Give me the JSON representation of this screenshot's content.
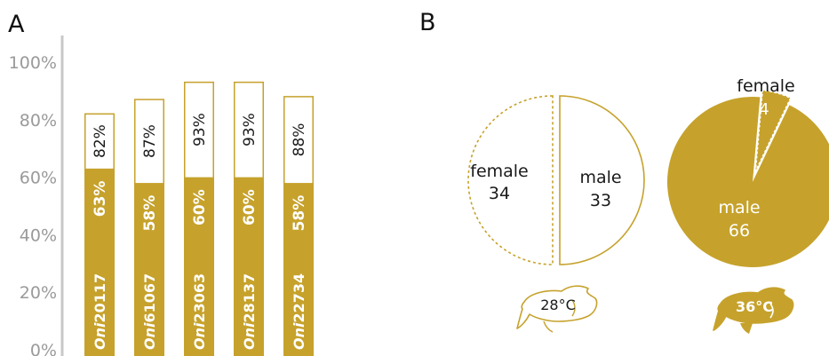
{
  "colors": {
    "gold": "#c6a22c",
    "axis": "#c8c8c8",
    "tick_text": "#9a9a9a",
    "text": "#1a1a1a",
    "white": "#ffffff"
  },
  "panels": {
    "a": "A",
    "b": "B"
  },
  "chart_data": [
    {
      "type": "bar",
      "panel": "A",
      "ylim": [
        0,
        100
      ],
      "yticks": [
        "0%",
        "20%",
        "40%",
        "60%",
        "80%",
        "100%"
      ],
      "categories": [
        {
          "prefix": "Oni",
          "suffix": "20117"
        },
        {
          "prefix": "Oni",
          "suffix": "61067"
        },
        {
          "prefix": "Oni",
          "suffix": "23063"
        },
        {
          "prefix": "Oni",
          "suffix": "28137"
        },
        {
          "prefix": "Oni",
          "suffix": "22734"
        }
      ],
      "series": [
        {
          "values": [
            63,
            58,
            60,
            60,
            58
          ],
          "labels": [
            "63%",
            "58%",
            "60%",
            "60%",
            "58%"
          ],
          "style": "filled"
        },
        {
          "values": [
            82,
            87,
            93,
            93,
            88
          ],
          "labels": [
            "82%",
            "87%",
            "93%",
            "93%",
            "88%"
          ],
          "style": "outline"
        }
      ]
    },
    {
      "type": "pie",
      "panel": "B",
      "icon_label": "28°C",
      "slices": [
        {
          "label": "female",
          "value": 34,
          "value_label": "34",
          "style": "dashed-outline"
        },
        {
          "label": "male",
          "value": 33,
          "value_label": "33",
          "style": "outline"
        }
      ]
    },
    {
      "type": "pie",
      "panel": "B",
      "icon_label": "36°C",
      "slices": [
        {
          "label": "female",
          "value": 4,
          "value_label": "4",
          "style": "dashed-outline"
        },
        {
          "label": "male",
          "value": 66,
          "value_label": "66",
          "style": "filled"
        }
      ]
    }
  ]
}
